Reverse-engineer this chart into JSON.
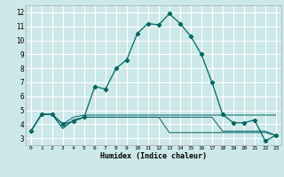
{
  "xlabel": "Humidex (Indice chaleur)",
  "bg_color": "#cce8e8",
  "grid_color": "#ffffff",
  "line_color": "#006666",
  "xlim": [
    -0.5,
    23.5
  ],
  "ylim": [
    2.5,
    12.5
  ],
  "xticks": [
    0,
    1,
    2,
    3,
    4,
    5,
    6,
    7,
    8,
    9,
    10,
    11,
    12,
    13,
    14,
    15,
    16,
    17,
    18,
    19,
    20,
    21,
    22,
    23
  ],
  "yticks": [
    3,
    4,
    5,
    6,
    7,
    8,
    9,
    10,
    11,
    12
  ],
  "line1_x": [
    0,
    1,
    2,
    3,
    4,
    5,
    6,
    7,
    8,
    9,
    10,
    11,
    12,
    13,
    14,
    15,
    16,
    17,
    18,
    19,
    20,
    21,
    22,
    23
  ],
  "line1_y": [
    3.5,
    4.7,
    4.7,
    4.0,
    4.2,
    4.5,
    6.7,
    6.5,
    8.0,
    8.6,
    10.5,
    11.2,
    11.1,
    11.9,
    11.2,
    10.3,
    9.0,
    7.0,
    4.7,
    4.1,
    4.1,
    4.3,
    2.8,
    3.2
  ],
  "line2_x": [
    0,
    1,
    2,
    3,
    4,
    5,
    6,
    7,
    8,
    9,
    10,
    11,
    12,
    13,
    14,
    15,
    16,
    17,
    18,
    19,
    20,
    21,
    22,
    23
  ],
  "line2_y": [
    3.5,
    4.7,
    4.7,
    4.0,
    4.5,
    4.65,
    4.65,
    4.65,
    4.65,
    4.65,
    4.65,
    4.65,
    4.65,
    4.65,
    4.65,
    4.65,
    4.65,
    4.65,
    4.65,
    4.65,
    4.65,
    4.65,
    4.65,
    4.65
  ],
  "line3_x": [
    0,
    1,
    2,
    3,
    4,
    5,
    6,
    7,
    8,
    9,
    10,
    11,
    12,
    13,
    14,
    15,
    16,
    17,
    18,
    19,
    20,
    21,
    22,
    23
  ],
  "line3_y": [
    3.5,
    4.7,
    4.7,
    3.7,
    4.3,
    4.5,
    4.5,
    4.5,
    4.5,
    4.5,
    4.5,
    4.5,
    4.5,
    4.5,
    4.5,
    4.5,
    4.5,
    4.5,
    3.5,
    3.5,
    3.5,
    3.5,
    3.5,
    3.2
  ],
  "line4_x": [
    0,
    1,
    2,
    3,
    4,
    5,
    6,
    7,
    8,
    9,
    10,
    11,
    12,
    13,
    14,
    15,
    16,
    17,
    18,
    19,
    20,
    21,
    22,
    23
  ],
  "line4_y": [
    3.5,
    4.7,
    4.7,
    3.7,
    4.3,
    4.5,
    4.5,
    4.5,
    4.5,
    4.5,
    4.5,
    4.5,
    4.5,
    3.4,
    3.4,
    3.4,
    3.4,
    3.4,
    3.4,
    3.4,
    3.4,
    3.4,
    3.4,
    3.2
  ]
}
